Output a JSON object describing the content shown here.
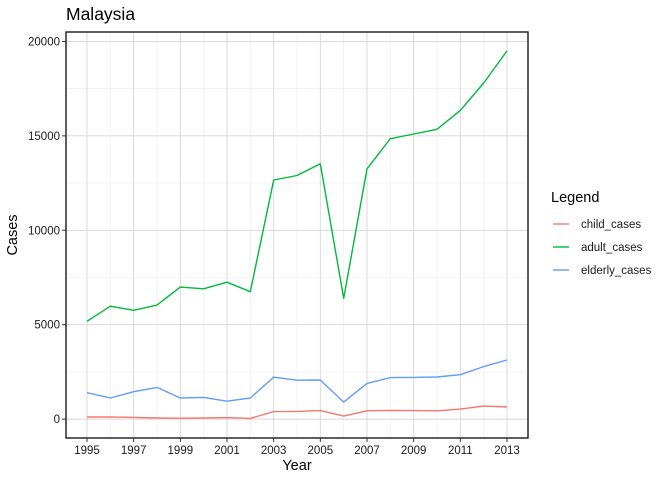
{
  "chart_data": {
    "type": "line",
    "title": "Malaysia",
    "xlabel": "Year",
    "ylabel": "Cases",
    "x": [
      1995,
      1996,
      1997,
      1998,
      1999,
      2000,
      2001,
      2002,
      2003,
      2004,
      2005,
      2006,
      2007,
      2008,
      2009,
      2010,
      2011,
      2012,
      2013
    ],
    "xlim": [
      1994.1,
      2013.9
    ],
    "ylim": [
      -1000,
      20500
    ],
    "x_ticks": [
      1995,
      1997,
      1999,
      2001,
      2003,
      2005,
      2007,
      2009,
      2011,
      2013
    ],
    "y_ticks": [
      0,
      5000,
      10000,
      15000,
      20000
    ],
    "grid": true,
    "legend": {
      "title": "Legend",
      "position": "right"
    },
    "series": [
      {
        "name": "child_cases",
        "color": "#F8766D",
        "values": [
          110,
          120,
          90,
          60,
          50,
          60,
          80,
          40,
          400,
          410,
          450,
          160,
          440,
          460,
          450,
          440,
          530,
          690,
          640
        ]
      },
      {
        "name": "adult_cases",
        "color": "#00BA38",
        "values": [
          5180,
          5980,
          5760,
          6040,
          6990,
          6900,
          7250,
          6750,
          12660,
          12900,
          13520,
          6400,
          13250,
          14850,
          15100,
          15350,
          16350,
          17800,
          19500
        ]
      },
      {
        "name": "elderly_cases",
        "color": "#619CFF",
        "values": [
          1400,
          1120,
          1450,
          1680,
          1120,
          1150,
          950,
          1120,
          2220,
          2060,
          2070,
          900,
          1890,
          2200,
          2210,
          2230,
          2350,
          2780,
          3130
        ]
      }
    ]
  }
}
